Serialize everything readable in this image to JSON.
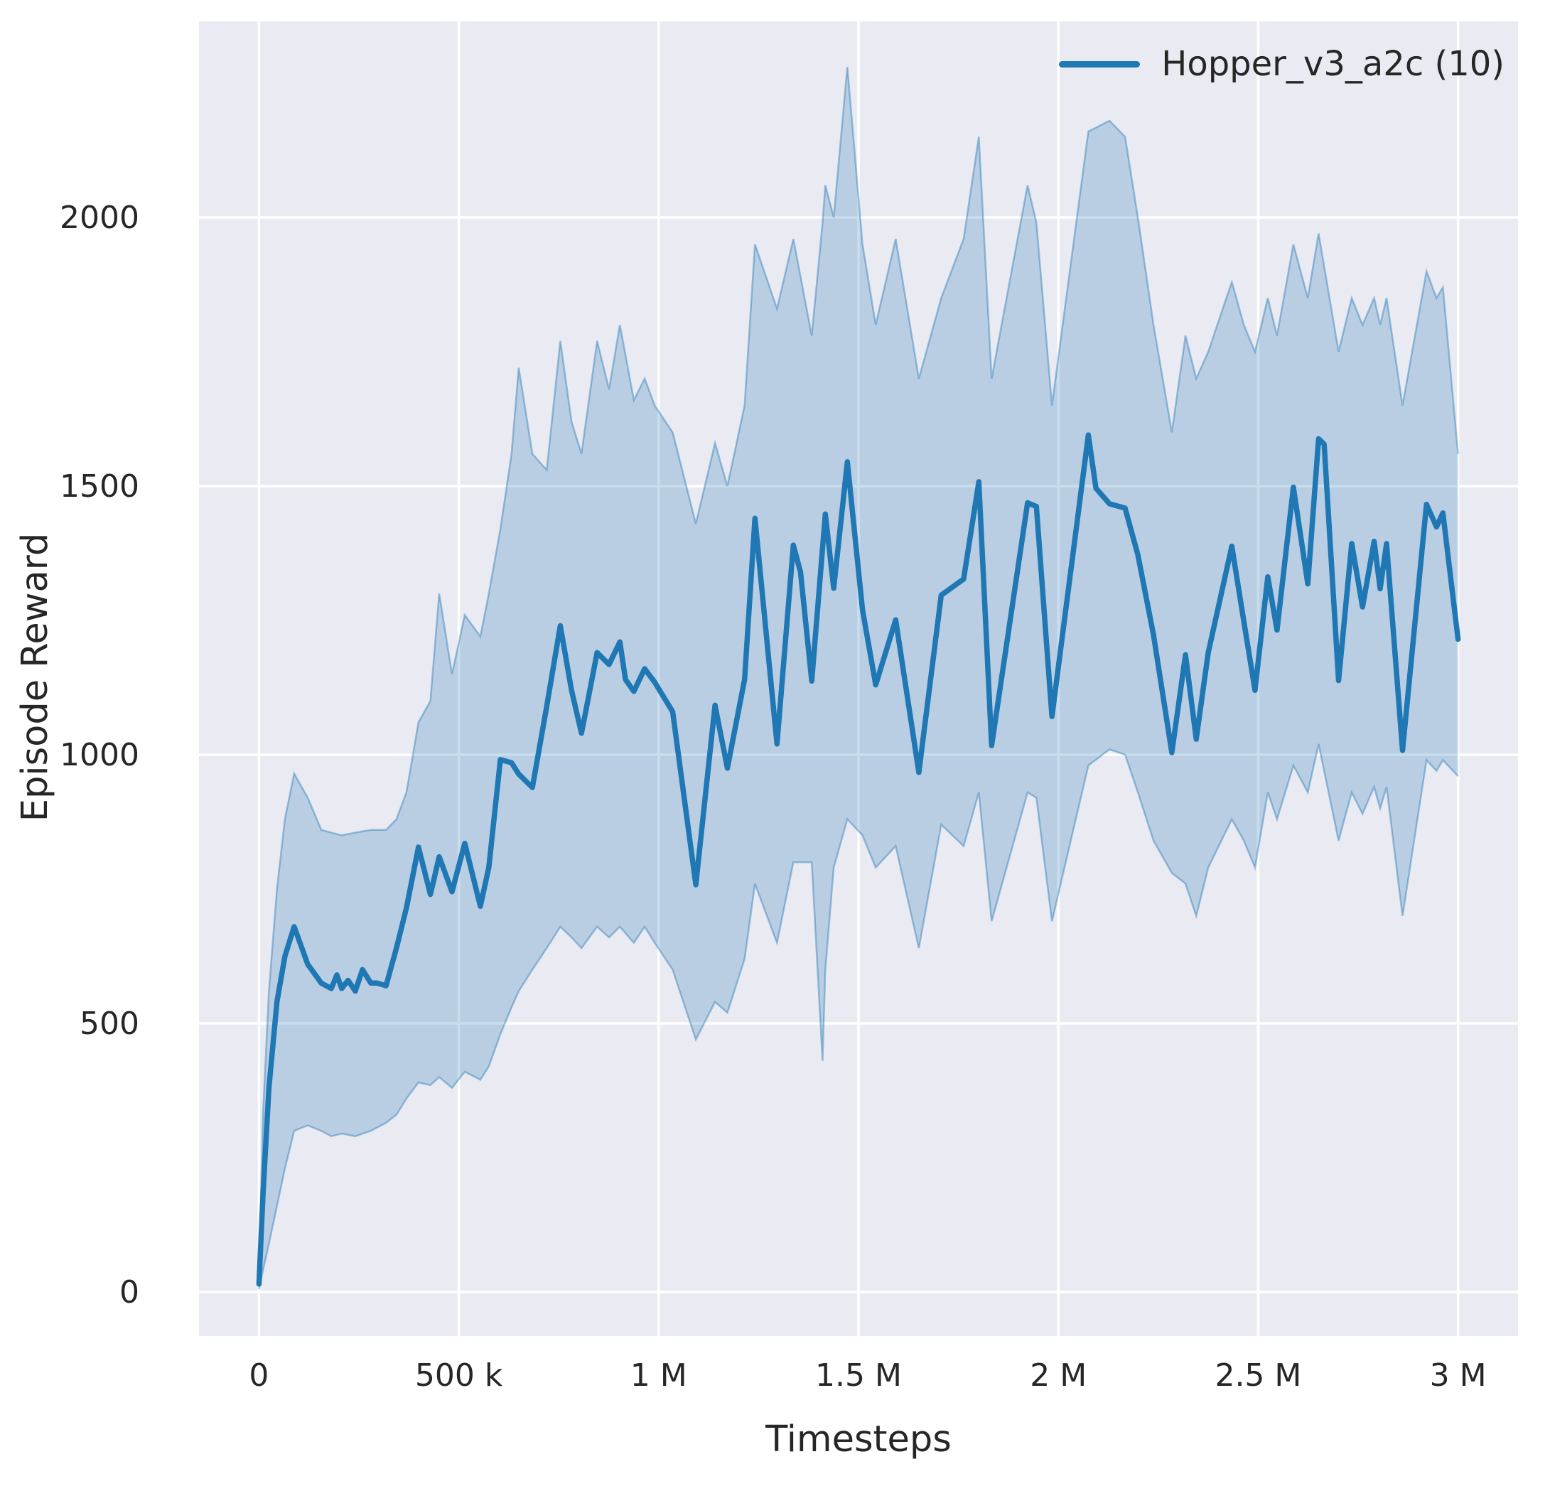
{
  "chart_data": {
    "type": "line",
    "title": "",
    "xlabel": "Timesteps",
    "ylabel": "Episode Reward",
    "grid": true,
    "legend_position": "upper right",
    "xlim": [
      -150000,
      3150000
    ],
    "ylim": [
      -82,
      2365
    ],
    "x_ticks": [
      {
        "value": 0,
        "label": "0"
      },
      {
        "value": 500000,
        "label": "500 k"
      },
      {
        "value": 1000000,
        "label": "1 M"
      },
      {
        "value": 1500000,
        "label": "1.5 M"
      },
      {
        "value": 2000000,
        "label": "2 M"
      },
      {
        "value": 2500000,
        "label": "2.5 M"
      },
      {
        "value": 3000000,
        "label": "3 M"
      }
    ],
    "y_ticks": [
      {
        "value": 0,
        "label": "0"
      },
      {
        "value": 500,
        "label": "500"
      },
      {
        "value": 1000,
        "label": "1000"
      },
      {
        "value": 1500,
        "label": "1500"
      },
      {
        "value": 2000,
        "label": "2000"
      }
    ],
    "colors": {
      "line": "#1f77b4",
      "band_fill": "#1f77b4",
      "band_fill_opacity": 0.24,
      "band_edge_opacity": 0.42,
      "axes_background": "#eaeaf2",
      "grid": "#ffffff",
      "figure_background": "#ffffff",
      "text": "#262626"
    },
    "series": [
      {
        "name": "Hopper_v3_a2c (10)",
        "color": "#1f77b4",
        "points": [
          [
            0,
            15
          ],
          [
            10000,
            180
          ],
          [
            25000,
            380
          ],
          [
            45000,
            540
          ],
          [
            65000,
            625
          ],
          [
            88000,
            680
          ],
          [
            122000,
            610
          ],
          [
            156000,
            575
          ],
          [
            181000,
            565
          ],
          [
            195000,
            590
          ],
          [
            207000,
            565
          ],
          [
            223000,
            580
          ],
          [
            241000,
            560
          ],
          [
            259000,
            600
          ],
          [
            280000,
            575
          ],
          [
            296000,
            575
          ],
          [
            318000,
            570
          ],
          [
            344000,
            640
          ],
          [
            369000,
            715
          ],
          [
            399000,
            828
          ],
          [
            429000,
            740
          ],
          [
            451000,
            810
          ],
          [
            483000,
            745
          ],
          [
            515000,
            835
          ],
          [
            554000,
            718
          ],
          [
            575000,
            790
          ],
          [
            604000,
            991
          ],
          [
            632000,
            985
          ],
          [
            650000,
            964
          ],
          [
            684000,
            939
          ],
          [
            720000,
            1090
          ],
          [
            754000,
            1240
          ],
          [
            782000,
            1120
          ],
          [
            807000,
            1040
          ],
          [
            846000,
            1190
          ],
          [
            876000,
            1168
          ],
          [
            903000,
            1210
          ],
          [
            917000,
            1140
          ],
          [
            938000,
            1118
          ],
          [
            965000,
            1160
          ],
          [
            990000,
            1135
          ],
          [
            1035000,
            1080
          ],
          [
            1093000,
            758
          ],
          [
            1141000,
            1092
          ],
          [
            1172000,
            975
          ],
          [
            1215000,
            1140
          ],
          [
            1241000,
            1440
          ],
          [
            1296000,
            1020
          ],
          [
            1337000,
            1390
          ],
          [
            1355000,
            1340
          ],
          [
            1383000,
            1137
          ],
          [
            1417000,
            1448
          ],
          [
            1438000,
            1310
          ],
          [
            1472000,
            1545
          ],
          [
            1510000,
            1270
          ],
          [
            1543000,
            1130
          ],
          [
            1593000,
            1251
          ],
          [
            1651000,
            967
          ],
          [
            1707000,
            1297
          ],
          [
            1763000,
            1327
          ],
          [
            1801000,
            1508
          ],
          [
            1833000,
            1017
          ],
          [
            1923000,
            1469
          ],
          [
            1945000,
            1462
          ],
          [
            1984000,
            1071
          ],
          [
            2075000,
            1595
          ],
          [
            2094000,
            1496
          ],
          [
            2128000,
            1467
          ],
          [
            2167000,
            1459
          ],
          [
            2199000,
            1372
          ],
          [
            2238000,
            1223
          ],
          [
            2284000,
            1004
          ],
          [
            2318000,
            1186
          ],
          [
            2345000,
            1029
          ],
          [
            2375000,
            1190
          ],
          [
            2434000,
            1388
          ],
          [
            2464000,
            1248
          ],
          [
            2492000,
            1120
          ],
          [
            2524000,
            1331
          ],
          [
            2547000,
            1232
          ],
          [
            2588000,
            1498
          ],
          [
            2624000,
            1318
          ],
          [
            2651000,
            1588
          ],
          [
            2665000,
            1578
          ],
          [
            2701000,
            1138
          ],
          [
            2734000,
            1393
          ],
          [
            2761000,
            1275
          ],
          [
            2790000,
            1397
          ],
          [
            2805000,
            1309
          ],
          [
            2821000,
            1393
          ],
          [
            2861000,
            1008
          ],
          [
            2921000,
            1466
          ],
          [
            2946000,
            1424
          ],
          [
            2962000,
            1450
          ],
          [
            3000000,
            1215
          ]
        ],
        "band": [
          [
            0,
            5,
            30
          ],
          [
            10000,
            40,
            330
          ],
          [
            25000,
            90,
            560
          ],
          [
            45000,
            160,
            750
          ],
          [
            65000,
            230,
            880
          ],
          [
            88000,
            300,
            965
          ],
          [
            122000,
            310,
            920
          ],
          [
            156000,
            300,
            860
          ],
          [
            181000,
            290,
            855
          ],
          [
            207000,
            295,
            850
          ],
          [
            241000,
            290,
            855
          ],
          [
            280000,
            300,
            860
          ],
          [
            318000,
            315,
            860
          ],
          [
            344000,
            330,
            880
          ],
          [
            369000,
            360,
            930
          ],
          [
            399000,
            390,
            1060
          ],
          [
            429000,
            385,
            1100
          ],
          [
            451000,
            400,
            1300
          ],
          [
            483000,
            380,
            1150
          ],
          [
            515000,
            410,
            1260
          ],
          [
            554000,
            395,
            1220
          ],
          [
            575000,
            420,
            1300
          ],
          [
            604000,
            480,
            1420
          ],
          [
            632000,
            530,
            1560
          ],
          [
            650000,
            560,
            1720
          ],
          [
            684000,
            600,
            1560
          ],
          [
            720000,
            640,
            1530
          ],
          [
            754000,
            680,
            1770
          ],
          [
            782000,
            660,
            1620
          ],
          [
            807000,
            640,
            1560
          ],
          [
            846000,
            680,
            1770
          ],
          [
            876000,
            660,
            1680
          ],
          [
            903000,
            680,
            1800
          ],
          [
            938000,
            650,
            1660
          ],
          [
            965000,
            680,
            1700
          ],
          [
            990000,
            650,
            1650
          ],
          [
            1035000,
            600,
            1600
          ],
          [
            1093000,
            470,
            1430
          ],
          [
            1141000,
            540,
            1580
          ],
          [
            1172000,
            520,
            1500
          ],
          [
            1215000,
            620,
            1650
          ],
          [
            1241000,
            760,
            1950
          ],
          [
            1296000,
            650,
            1830
          ],
          [
            1337000,
            800,
            1960
          ],
          [
            1383000,
            800,
            1780
          ],
          [
            1410000,
            430,
            1990
          ],
          [
            1417000,
            600,
            2060
          ],
          [
            1438000,
            790,
            2000
          ],
          [
            1472000,
            880,
            2280
          ],
          [
            1510000,
            850,
            1950
          ],
          [
            1543000,
            790,
            1800
          ],
          [
            1593000,
            830,
            1960
          ],
          [
            1651000,
            640,
            1700
          ],
          [
            1707000,
            870,
            1850
          ],
          [
            1763000,
            830,
            1960
          ],
          [
            1801000,
            930,
            2150
          ],
          [
            1833000,
            690,
            1700
          ],
          [
            1923000,
            930,
            2060
          ],
          [
            1945000,
            920,
            1990
          ],
          [
            1984000,
            690,
            1650
          ],
          [
            2075000,
            980,
            2160
          ],
          [
            2128000,
            1010,
            2180
          ],
          [
            2167000,
            1000,
            2150
          ],
          [
            2199000,
            930,
            2000
          ],
          [
            2238000,
            840,
            1800
          ],
          [
            2284000,
            780,
            1600
          ],
          [
            2318000,
            760,
            1780
          ],
          [
            2345000,
            700,
            1700
          ],
          [
            2375000,
            790,
            1750
          ],
          [
            2434000,
            880,
            1880
          ],
          [
            2464000,
            840,
            1800
          ],
          [
            2492000,
            790,
            1750
          ],
          [
            2524000,
            930,
            1850
          ],
          [
            2547000,
            880,
            1780
          ],
          [
            2588000,
            980,
            1950
          ],
          [
            2624000,
            930,
            1850
          ],
          [
            2651000,
            1020,
            1970
          ],
          [
            2701000,
            840,
            1750
          ],
          [
            2734000,
            930,
            1850
          ],
          [
            2761000,
            890,
            1800
          ],
          [
            2790000,
            940,
            1850
          ],
          [
            2805000,
            900,
            1800
          ],
          [
            2821000,
            940,
            1850
          ],
          [
            2861000,
            700,
            1650
          ],
          [
            2921000,
            990,
            1900
          ],
          [
            2946000,
            970,
            1850
          ],
          [
            2962000,
            990,
            1870
          ],
          [
            3000000,
            960,
            1560
          ]
        ]
      }
    ]
  }
}
